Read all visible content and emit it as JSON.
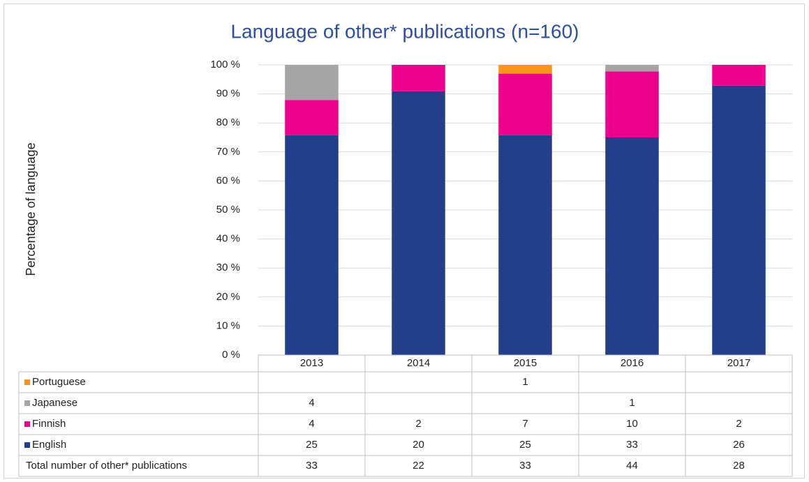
{
  "chart_data": {
    "type": "stacked_percent_bar",
    "title": "Language of other* publications (n=160)",
    "y_label": "Percentage of language",
    "categories": [
      "2013",
      "2014",
      "2015",
      "2016",
      "2017"
    ],
    "series": [
      {
        "name": "English",
        "color": "#233f8c",
        "values": [
          25,
          20,
          25,
          33,
          26
        ]
      },
      {
        "name": "Finnish",
        "color": "#ec008c",
        "values": [
          4,
          2,
          7,
          10,
          2
        ]
      },
      {
        "name": "Japanese",
        "color": "#a5a5a5",
        "values": [
          4,
          null,
          null,
          1,
          null
        ]
      },
      {
        "name": "Portuguese",
        "color": "#f7941d",
        "values": [
          null,
          null,
          1,
          null,
          null
        ]
      }
    ],
    "totals_label": "Total number of other* publications",
    "totals": [
      33,
      22,
      33,
      44,
      28
    ],
    "ylim": [
      0,
      100
    ],
    "yticks": [
      {
        "value": 0,
        "label": "0 %"
      },
      {
        "value": 10,
        "label": "10 %"
      },
      {
        "value": 20,
        "label": "20 %"
      },
      {
        "value": 30,
        "label": "30 %"
      },
      {
        "value": 40,
        "label": "40 %"
      },
      {
        "value": 50,
        "label": "50 %"
      },
      {
        "value": 60,
        "label": "60 %"
      },
      {
        "value": 70,
        "label": "70 %"
      },
      {
        "value": 80,
        "label": "80 %"
      },
      {
        "value": 90,
        "label": "90 %"
      },
      {
        "value": 100,
        "label": "100 %"
      }
    ],
    "grid": true
  }
}
